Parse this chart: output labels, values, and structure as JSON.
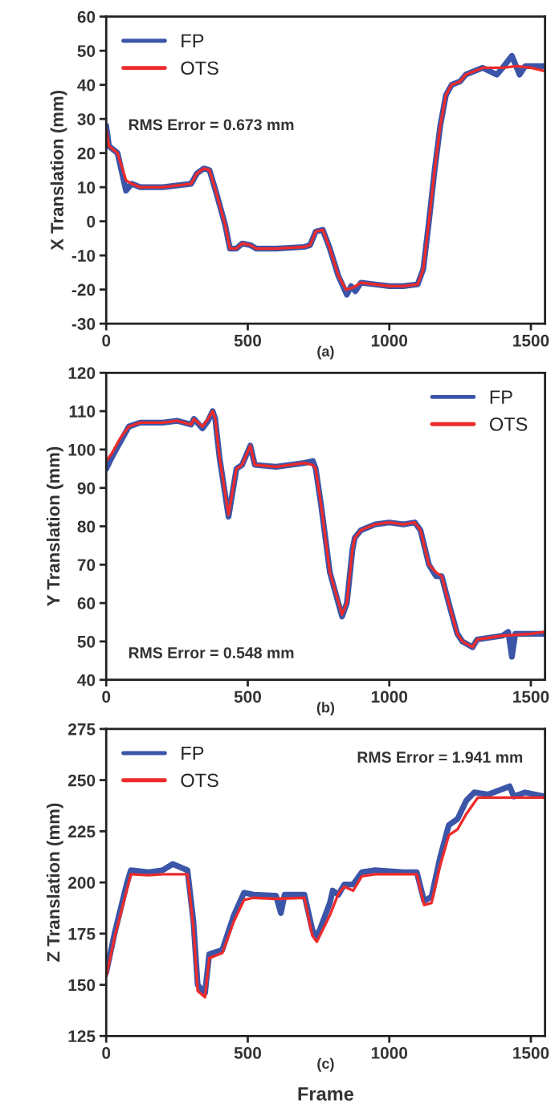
{
  "chart_data": [
    {
      "type": "line",
      "ylabel": "X Translation (mm)",
      "xlim": [
        0,
        1550
      ],
      "xticks": [
        0,
        500,
        1000,
        1500
      ],
      "ylim": [
        -30,
        60
      ],
      "yticks": [
        -30,
        -20,
        -10,
        0,
        10,
        20,
        30,
        40,
        50,
        60
      ],
      "legend": "top left",
      "grid": false,
      "annotations": [
        "RMS Error = 0.673 mm",
        "(a)"
      ],
      "series": [
        {
          "name": "FP",
          "color": "#3b55a8",
          "x": [
            0,
            10,
            40,
            70,
            90,
            120,
            200,
            300,
            320,
            345,
            365,
            390,
            420,
            437,
            460,
            480,
            510,
            530,
            600,
            700,
            720,
            740,
            765,
            790,
            820,
            850,
            865,
            880,
            900,
            950,
            1000,
            1050,
            1100,
            1120,
            1140,
            1160,
            1180,
            1200,
            1220,
            1250,
            1270,
            1300,
            1330,
            1380,
            1400,
            1433,
            1460,
            1480,
            1550
          ],
          "values": [
            28,
            22,
            20,
            9,
            11,
            10,
            10,
            11,
            14,
            15.5,
            15,
            8,
            -1,
            -8,
            -8,
            -6.5,
            -7,
            -8,
            -8,
            -7.5,
            -7,
            -3,
            -2.5,
            -8,
            -16,
            -21.5,
            -19,
            -20.5,
            -18,
            -18.5,
            -19,
            -19,
            -18.5,
            -14,
            0,
            15,
            28,
            37,
            40,
            41,
            43,
            44,
            45,
            43,
            45,
            48.5,
            43,
            45.5,
            45.5
          ]
        },
        {
          "name": "OTS",
          "color": "#ee2b2b",
          "x": [
            0,
            10,
            40,
            70,
            90,
            120,
            200,
            300,
            320,
            345,
            365,
            390,
            420,
            437,
            460,
            480,
            510,
            530,
            600,
            700,
            720,
            740,
            765,
            790,
            820,
            847,
            870,
            900,
            950,
            1000,
            1050,
            1100,
            1120,
            1140,
            1160,
            1180,
            1200,
            1220,
            1250,
            1270,
            1300,
            1330,
            1400,
            1450,
            1500,
            1550
          ],
          "values": [
            27,
            22,
            20,
            12,
            11,
            10,
            10,
            11,
            14,
            15.5,
            15,
            8,
            -1,
            -8,
            -8,
            -6.5,
            -7,
            -8,
            -8,
            -7.5,
            -7,
            -3,
            -2.5,
            -8,
            -16,
            -20,
            -19.5,
            -18,
            -18.5,
            -19,
            -19,
            -18.5,
            -14,
            0,
            15,
            28,
            37,
            40,
            41,
            43,
            44,
            45,
            45,
            45.5,
            45,
            44
          ]
        }
      ]
    },
    {
      "type": "line",
      "ylabel": "Y Translation (mm)",
      "xlim": [
        0,
        1550
      ],
      "xticks": [
        0,
        500,
        1000,
        1500
      ],
      "ylim": [
        40,
        120
      ],
      "yticks": [
        40,
        50,
        60,
        70,
        80,
        90,
        100,
        110,
        120
      ],
      "legend": "top right",
      "grid": false,
      "annotations": [
        "RMS Error = 0.548 mm",
        "(b)"
      ],
      "series": [
        {
          "name": "FP",
          "color": "#3b55a8",
          "x": [
            0,
            20,
            50,
            80,
            120,
            200,
            250,
            300,
            310,
            340,
            360,
            376,
            385,
            400,
            432,
            460,
            480,
            509,
            525,
            600,
            700,
            730,
            740,
            760,
            790,
            833,
            850,
            870,
            878,
            900,
            950,
            1000,
            1050,
            1090,
            1110,
            1140,
            1165,
            1185,
            1210,
            1240,
            1258,
            1294,
            1310,
            1400,
            1420,
            1433,
            1445,
            1500,
            1550
          ],
          "values": [
            95,
            98,
            102,
            106,
            107,
            107,
            107.5,
            106.5,
            108,
            105.5,
            107.5,
            110,
            108,
            98,
            82.5,
            95,
            96,
            101,
            96,
            95.5,
            96.5,
            97,
            95,
            85,
            68,
            56.5,
            60,
            74,
            77,
            79,
            80.5,
            81,
            80.5,
            81,
            79,
            70,
            67,
            67,
            60,
            52,
            50,
            48.5,
            50.5,
            51.5,
            52.5,
            46,
            52,
            52,
            52
          ]
        },
        {
          "name": "OTS",
          "color": "#ee2b2b",
          "x": [
            0,
            20,
            50,
            80,
            120,
            200,
            250,
            300,
            310,
            340,
            360,
            376,
            385,
            400,
            432,
            460,
            480,
            509,
            525,
            600,
            700,
            730,
            740,
            760,
            790,
            833,
            850,
            870,
            878,
            900,
            950,
            1000,
            1050,
            1090,
            1110,
            1140,
            1165,
            1185,
            1210,
            1240,
            1258,
            1294,
            1310,
            1400,
            1500,
            1550
          ],
          "values": [
            97,
            99,
            103,
            106,
            107,
            107,
            107.5,
            106.5,
            108,
            106,
            108,
            110,
            108,
            98,
            83,
            95,
            96,
            101,
            96,
            95.5,
            96.5,
            96,
            95,
            85,
            68,
            57,
            60,
            74,
            77,
            79,
            80.5,
            81,
            80.5,
            81,
            79,
            70,
            68,
            67,
            60,
            52,
            50,
            48.5,
            50.5,
            51.5,
            52,
            52.5
          ]
        }
      ]
    },
    {
      "type": "line",
      "xlabel": "Frame",
      "ylabel": "Z Translation (mm)",
      "xlim": [
        0,
        1550
      ],
      "xticks": [
        0,
        500,
        1000,
        1500
      ],
      "ylim": [
        125,
        275
      ],
      "yticks": [
        125,
        150,
        175,
        200,
        225,
        250,
        275
      ],
      "legend": "top left",
      "grid": false,
      "annotations": [
        "RMS Error = 1.941 mm",
        "(c)"
      ],
      "series": [
        {
          "name": "FP",
          "color": "#3b55a8",
          "x": [
            0,
            31,
            72,
            87,
            150,
            200,
            235,
            287,
            308,
            323,
            349,
            364,
            410,
            451,
            487,
            520,
            600,
            617,
            630,
            700,
            728,
            744,
            790,
            800,
            820,
            841,
            872,
            903,
            950,
            1050,
            1097,
            1123,
            1149,
            1179,
            1210,
            1241,
            1272,
            1300,
            1350,
            1425,
            1440,
            1480,
            1550
          ],
          "values": [
            156,
            176,
            199,
            206,
            205,
            206,
            209,
            206,
            181,
            150,
            146,
            165,
            167,
            184,
            195,
            194,
            193.5,
            185,
            194,
            194,
            177,
            173,
            190,
            196,
            194,
            199,
            199,
            205,
            206,
            205,
            205,
            191,
            193,
            212,
            228,
            231,
            240,
            244,
            243,
            247,
            242,
            244,
            242
          ]
        },
        {
          "name": "OTS",
          "color": "#ee2b2b",
          "x": [
            0,
            31,
            72,
            87,
            150,
            200,
            287,
            308,
            323,
            349,
            364,
            410,
            451,
            487,
            520,
            600,
            700,
            728,
            744,
            790,
            820,
            841,
            872,
            903,
            950,
            1050,
            1097,
            1123,
            1149,
            1179,
            1210,
            1241,
            1272,
            1313,
            1400,
            1550
          ],
          "values": [
            154,
            174,
            196,
            204,
            203.5,
            204,
            204,
            178,
            147,
            144,
            163,
            165.5,
            181,
            191.5,
            192.5,
            192,
            192.5,
            174,
            171,
            184,
            194.5,
            198,
            196,
            203,
            204,
            204,
            204,
            189,
            190,
            208,
            223,
            226,
            233.5,
            241.5,
            241.5,
            241.5
          ]
        }
      ]
    }
  ]
}
